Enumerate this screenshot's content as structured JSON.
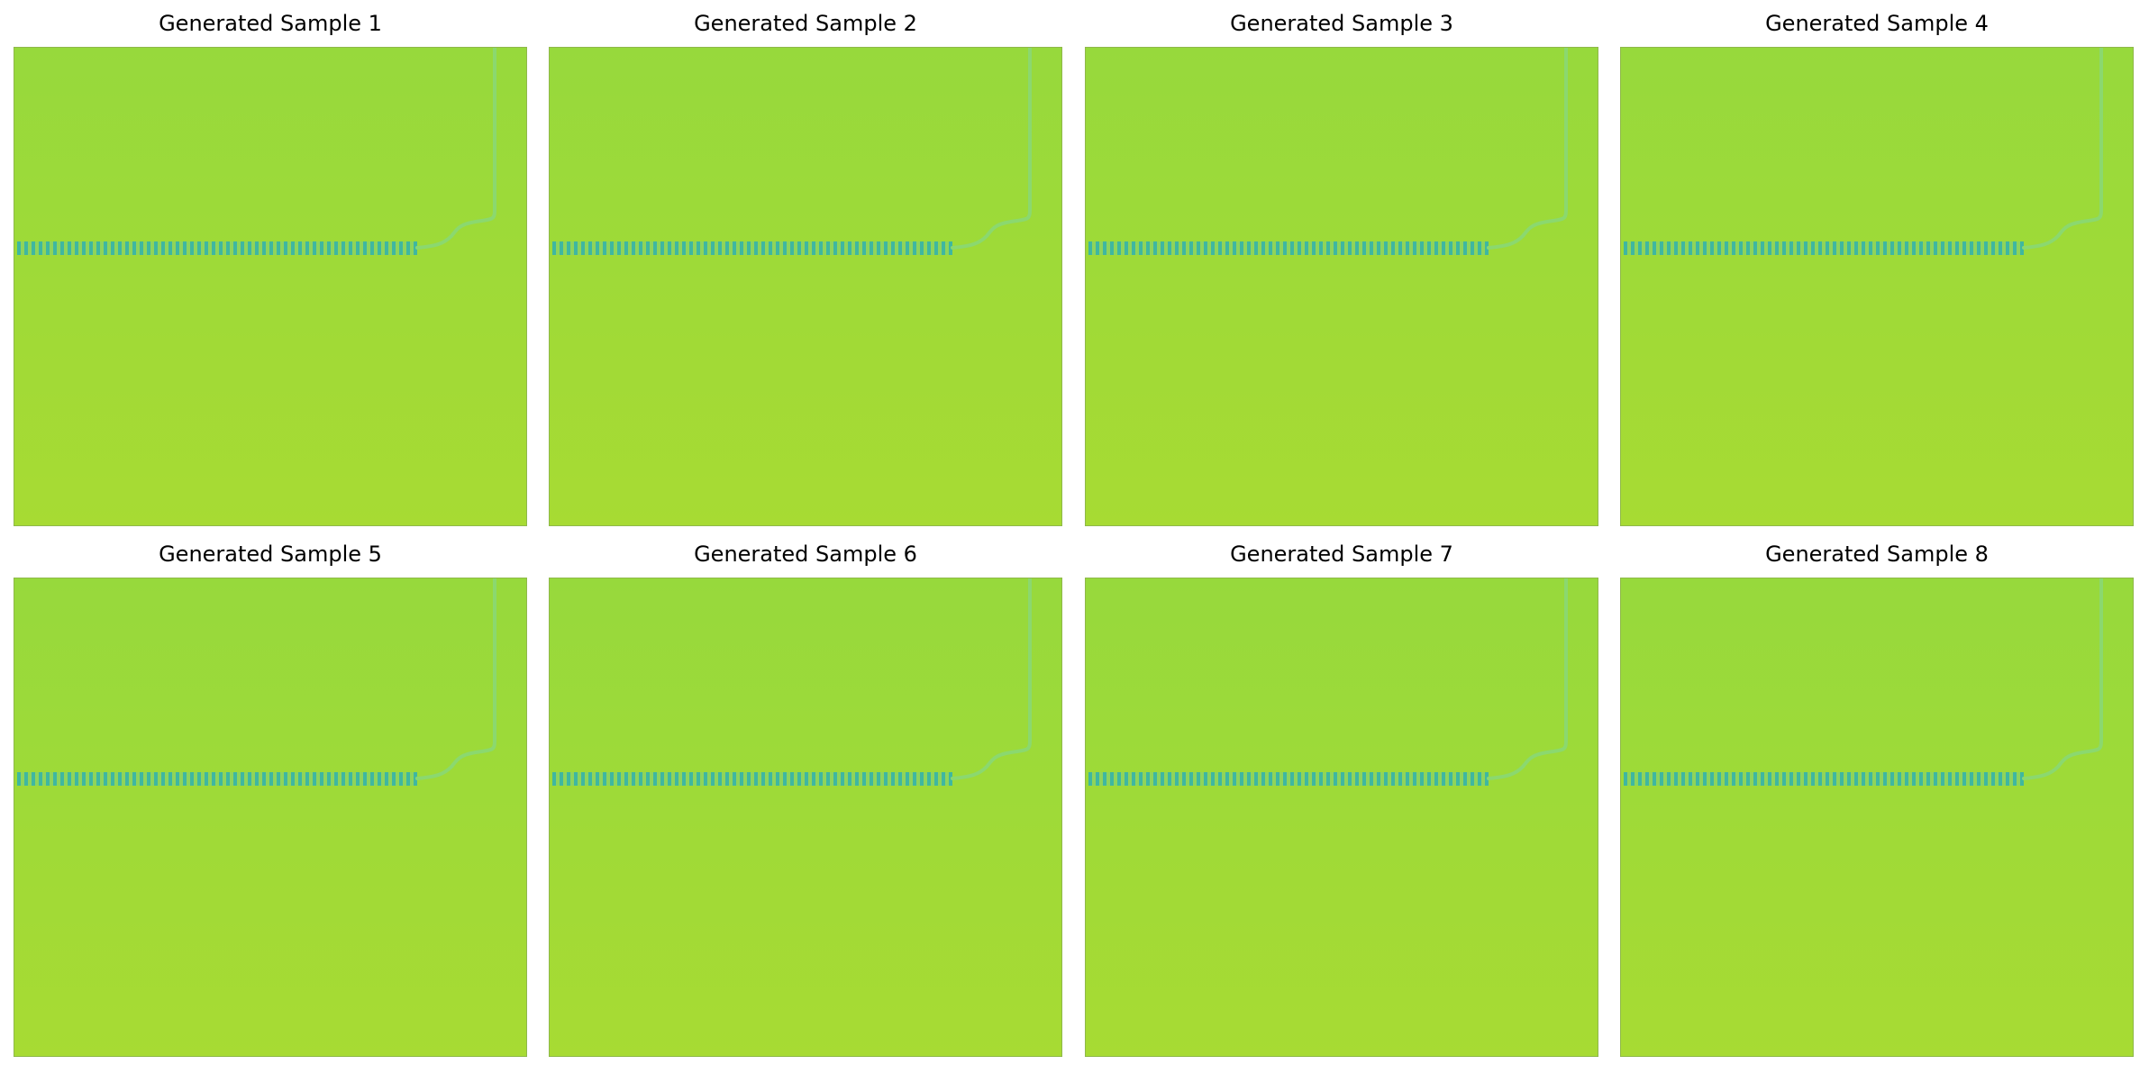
{
  "figure": {
    "panels": [
      {
        "title": "Generated Sample 1"
      },
      {
        "title": "Generated Sample 2"
      },
      {
        "title": "Generated Sample 3"
      },
      {
        "title": "Generated Sample 4"
      },
      {
        "title": "Generated Sample 5"
      },
      {
        "title": "Generated Sample 6"
      },
      {
        "title": "Generated Sample 7"
      },
      {
        "title": "Generated Sample 8"
      }
    ]
  },
  "colors": {
    "background": "#ffffff",
    "field_top": "#97d93c",
    "field_bottom": "#a7db33",
    "border": "#8fb84a",
    "stripe_dark": "#3fb7a0",
    "stripe_light": "#8fd45a",
    "curve": "#8bd86f"
  }
}
